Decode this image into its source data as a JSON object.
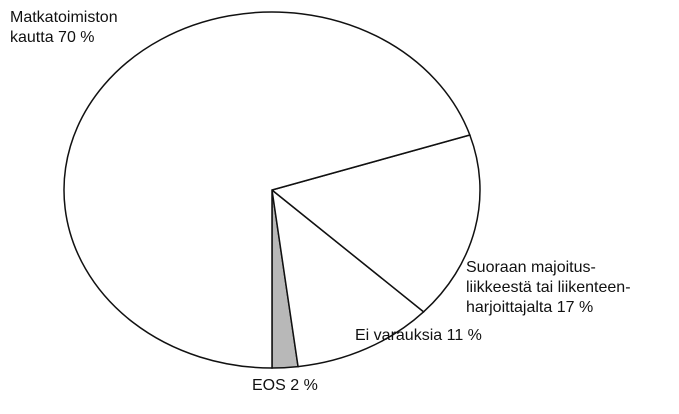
{
  "chart_data": {
    "type": "pie",
    "categories": [
      "EOS",
      "Ei varauksia",
      "Suoraan majoitus-\nliikkeestä tai liikenteen-\nharjoittajalta",
      "Matkatoimiston\nkautta"
    ],
    "values": [
      2,
      11,
      17,
      70
    ],
    "value_labels": [
      "2 %",
      "11 %",
      "17 %",
      "70 %"
    ],
    "colors": [
      "#b8b8b8",
      "#ffffff",
      "#ffffff",
      "#ffffff"
    ]
  }
}
